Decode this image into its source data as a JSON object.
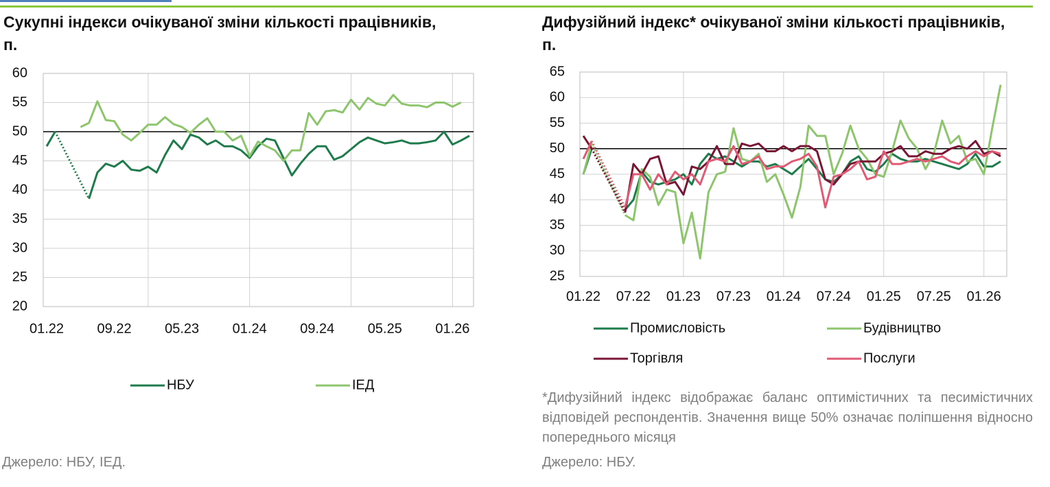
{
  "chart_data": [
    {
      "type": "line",
      "title": "Сукупні індекси очікуваної зміни кількості працівників, п.",
      "categories": [
        "01.22",
        null,
        null,
        null,
        null,
        null,
        null,
        null,
        "09.22",
        null,
        null,
        null,
        null,
        null,
        null,
        null,
        "05.23",
        null,
        null,
        null,
        null,
        null,
        null,
        null,
        "01.24",
        null,
        null,
        null,
        null,
        null,
        null,
        null,
        "09.24",
        null,
        null,
        null,
        null,
        null,
        null,
        null,
        "05.25",
        null,
        null,
        null,
        null,
        null,
        null,
        null,
        "01.26",
        null,
        null
      ],
      "series": [
        {
          "name": "НБУ",
          "color": "#1e7b4b",
          "values": [
            47.5,
            50,
            null,
            null,
            null,
            38.5,
            43,
            44.5,
            44,
            45,
            43.5,
            43.3,
            44,
            43,
            46,
            48.5,
            47,
            49.5,
            49,
            47.8,
            48.5,
            47.5,
            47.5,
            46.8,
            45.5,
            47.5,
            48.8,
            48.5,
            45.5,
            42.5,
            44.5,
            46.2,
            47.5,
            47.5,
            45.2,
            45.8,
            47,
            48.2,
            49,
            48.5,
            48,
            48.2,
            48.5,
            48,
            48,
            48.2,
            48.5,
            50,
            47.8,
            48.5,
            49.3
          ]
        },
        {
          "name": "ІЕД",
          "color": "#8dc56c",
          "values": [
            null,
            null,
            null,
            null,
            50.8,
            51.5,
            55.2,
            52,
            51.8,
            49.5,
            48.5,
            49.8,
            51.2,
            51.2,
            52.5,
            51.3,
            50.8,
            49.8,
            51.2,
            52.3,
            50,
            50,
            48.5,
            49.3,
            45.8,
            48.3,
            47.5,
            46.8,
            45,
            46.8,
            46.8,
            53.2,
            51.2,
            53.5,
            53.7,
            53.3,
            55.5,
            53.8,
            55.8,
            54.8,
            54.5,
            56.3,
            54.8,
            54.5,
            54.5,
            54.2,
            55,
            55,
            54.3,
            55,
            null
          ]
        }
      ],
      "ylim": [
        20,
        60
      ],
      "yticks": [
        20,
        25,
        30,
        35,
        40,
        45,
        50,
        55,
        60
      ],
      "grid": true,
      "hline": 50,
      "gap_style": "dotted",
      "legend": "bottom",
      "source": "Джерело: НБУ, ІЕД."
    },
    {
      "type": "line",
      "title": "Дифузійний індекс* очікуваної зміни кількості працівників, п.",
      "categories": [
        "01.22",
        null,
        null,
        null,
        null,
        null,
        "07.22",
        null,
        null,
        null,
        null,
        null,
        "01.23",
        null,
        null,
        null,
        null,
        null,
        "07.23",
        null,
        null,
        null,
        null,
        null,
        "01.24",
        null,
        null,
        null,
        null,
        null,
        "07.24",
        null,
        null,
        null,
        null,
        null,
        "01.25",
        null,
        null,
        null,
        null,
        null,
        "07.25",
        null,
        null,
        null,
        null,
        null,
        "01.26",
        null,
        null
      ],
      "series": [
        {
          "name": "Промисловість",
          "color": "#1e7b4b",
          "values": [
            45,
            50,
            null,
            null,
            null,
            38,
            40,
            45.5,
            43.5,
            43,
            43.5,
            44,
            45,
            43,
            47,
            49,
            48,
            48.5,
            47.5,
            46.5,
            47.5,
            47.5,
            46.5,
            47,
            46,
            45,
            46.5,
            48,
            46,
            44,
            43.5,
            45,
            47.5,
            48.5,
            46,
            45.5,
            47,
            49,
            48,
            47.5,
            47.5,
            48,
            47.5,
            47,
            46.5,
            46,
            47,
            49,
            46.5,
            46.5,
            47.5
          ]
        },
        {
          "name": "Будівництво",
          "color": "#8dc56c",
          "values": [
            45,
            51,
            null,
            null,
            null,
            37,
            36,
            46,
            44.5,
            39,
            42,
            41.5,
            31.5,
            37.5,
            28.5,
            41.5,
            45,
            45.5,
            54,
            48,
            47.5,
            49,
            43.5,
            45,
            41,
            36.5,
            42.5,
            54.5,
            52.5,
            52.5,
            45,
            49,
            54.5,
            50,
            48,
            45,
            44.5,
            49.5,
            55.5,
            52,
            50,
            46,
            49,
            55.5,
            51,
            52.5,
            47.5,
            48,
            45,
            54,
            62.5
          ]
        },
        {
          "name": "Торгівля",
          "color": "#7a1535",
          "values": [
            52.5,
            50,
            null,
            null,
            null,
            37.5,
            47,
            45,
            48,
            48.5,
            43,
            43.5,
            41,
            46.5,
            46,
            47.5,
            50.5,
            47,
            47,
            51,
            50.5,
            51,
            49.5,
            49.5,
            50.5,
            49.5,
            50.5,
            50.5,
            49.5,
            44,
            43,
            45,
            47,
            47.5,
            47.5,
            47.5,
            49,
            49.5,
            50.5,
            48.5,
            48.5,
            49.5,
            49,
            49,
            50,
            50.5,
            50,
            51.5,
            49,
            49.5,
            48.5
          ]
        },
        {
          "name": "Послуги",
          "color": "#e05a74",
          "values": [
            48,
            51.5,
            null,
            null,
            null,
            38.5,
            45,
            45,
            42,
            45,
            43,
            45.5,
            44,
            45,
            43,
            47.5,
            48,
            47.5,
            50.5,
            47,
            47.5,
            48.5,
            46,
            46.5,
            46.5,
            47.5,
            48,
            49,
            46.5,
            38.5,
            44.5,
            45,
            46,
            47.5,
            44,
            44.5,
            49.5,
            47,
            47,
            47.5,
            48,
            47.5,
            48,
            48.5,
            47.5,
            47,
            48.5,
            49.5,
            48.5,
            49.5,
            49
          ]
        }
      ],
      "ylim": [
        25,
        65
      ],
      "yticks": [
        25,
        30,
        35,
        40,
        45,
        50,
        55,
        60,
        65
      ],
      "grid": true,
      "hline": 50,
      "gap_style": "dotted",
      "legend": "bottom",
      "note": "*Дифузійний індекс відображає баланс оптимістичних та песимістичних відповідей респондентів. Значення вище 50% означає поліпшення відносно попереднього місяця",
      "source": "Джерело: НБУ."
    }
  ]
}
